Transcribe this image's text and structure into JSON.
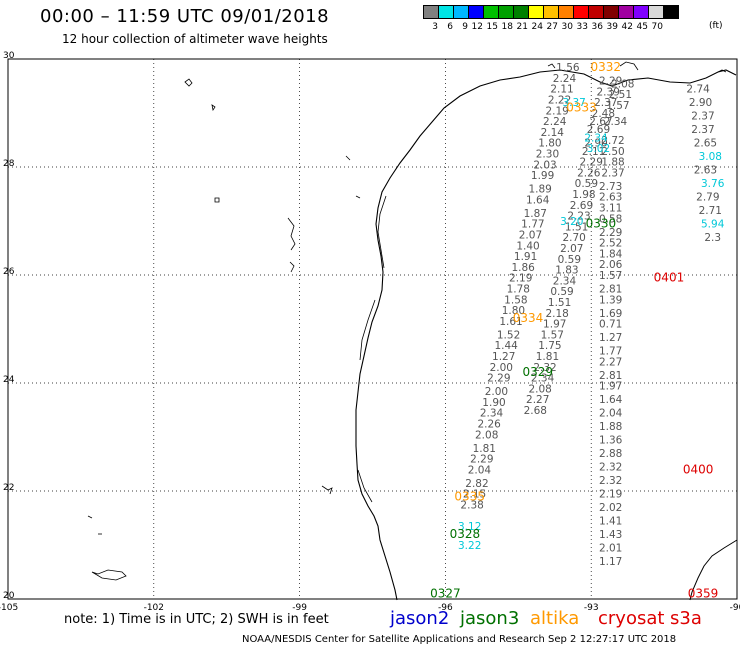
{
  "title": "00:00 – 11:59 UTC 09/01/2018",
  "subtitle": "12 hour collection of altimeter wave heights",
  "colorbar": {
    "colors": [
      "#808080",
      "#00e5e5",
      "#00b8ff",
      "#0000ff",
      "#00c000",
      "#00a000",
      "#008000",
      "#ffff00",
      "#ffc000",
      "#ff8000",
      "#ff0000",
      "#c00000",
      "#800000",
      "#a000a0",
      "#8000ff",
      "#d9d9d9",
      "#000000"
    ],
    "labels": [
      "3",
      "6",
      "9",
      "12",
      "15",
      "18",
      "21",
      "24",
      "27",
      "30",
      "33",
      "36",
      "39",
      "42",
      "45",
      "70"
    ],
    "unit": "(ft)"
  },
  "axes": {
    "lon_ticks": [
      "-105",
      "-102",
      "-99",
      "-96",
      "-93",
      "-90"
    ],
    "lat_ticks": [
      "30",
      "28",
      "26",
      "24",
      "22",
      "20"
    ]
  },
  "note": "note: 1) Time is in UTC; 2) SWH is in feet",
  "legend": [
    {
      "name": "jason2",
      "color": "#0000cc"
    },
    {
      "name": "jason3",
      "color": "#007000"
    },
    {
      "name": "altika",
      "color": "#ff9900"
    },
    {
      "name": "cryosat",
      "color": "#dd0000"
    },
    {
      "name": "s3a",
      "color": "#dd0000"
    }
  ],
  "footer": "NOAA/NESDIS Center for Satellite Applications and Research    Sep  2 12:27:17 UTC 2018",
  "times": [
    {
      "text": "0332",
      "color": "#ff9900",
      "lon": -92.7,
      "lat": 29.85
    },
    {
      "text": "0333",
      "color": "#ff9900",
      "lon": -93.2,
      "lat": 29.1
    },
    {
      "text": "0330",
      "color": "#007000",
      "lon": -92.8,
      "lat": 26.95
    },
    {
      "text": "0401",
      "color": "#dd0000",
      "lon": -91.4,
      "lat": 25.95
    },
    {
      "text": "0334",
      "color": "#ff9900",
      "lon": -94.3,
      "lat": 25.2
    },
    {
      "text": "0329",
      "color": "#007000",
      "lon": -94.1,
      "lat": 24.2
    },
    {
      "text": "0400",
      "color": "#dd0000",
      "lon": -90.8,
      "lat": 22.4
    },
    {
      "text": "0335",
      "color": "#ff9900",
      "lon": -95.5,
      "lat": 21.9
    },
    {
      "text": "0328",
      "color": "#007000",
      "lon": -95.6,
      "lat": 21.2
    },
    {
      "text": "0327",
      "color": "#007000",
      "lon": -96.0,
      "lat": 20.1
    },
    {
      "text": "0359",
      "color": "#dd0000",
      "lon": -90.7,
      "lat": 20.1
    }
  ],
  "tracks": [
    {
      "color": "#555555",
      "points": [
        [
          -93.48,
          29.85,
          "1.56"
        ],
        [
          -93.55,
          29.65,
          "2.24"
        ],
        [
          -93.6,
          29.45,
          "2.11"
        ],
        [
          -93.65,
          29.25,
          "2.22"
        ],
        [
          -93.7,
          29.05,
          "2.19"
        ],
        [
          -93.75,
          28.85,
          "2.24"
        ],
        [
          -93.8,
          28.65,
          "2.14"
        ],
        [
          -93.85,
          28.45,
          "1.80"
        ],
        [
          -93.9,
          28.25,
          "2.30"
        ],
        [
          -93.95,
          28.05,
          "2.03"
        ],
        [
          -94.0,
          27.85,
          "1.99"
        ],
        [
          -94.05,
          27.6,
          "1.89"
        ],
        [
          -94.1,
          27.4,
          "1.64"
        ],
        [
          -94.15,
          27.15,
          "1.87"
        ],
        [
          -94.2,
          26.95,
          "1.77"
        ],
        [
          -94.25,
          26.75,
          "2.07"
        ],
        [
          -94.3,
          26.55,
          "1.40"
        ],
        [
          -94.35,
          26.35,
          "1.91"
        ],
        [
          -94.4,
          26.15,
          "1.86"
        ],
        [
          -94.45,
          25.95,
          "2.19"
        ],
        [
          -94.5,
          25.75,
          "1.78"
        ],
        [
          -94.55,
          25.55,
          "1.58"
        ],
        [
          -94.6,
          25.35,
          "1.80"
        ],
        [
          -94.65,
          25.15,
          "1.61"
        ],
        [
          -94.7,
          24.9,
          "1.52"
        ],
        [
          -94.75,
          24.7,
          "1.44"
        ],
        [
          -94.8,
          24.5,
          "1.27"
        ],
        [
          -94.85,
          24.3,
          "2.00"
        ],
        [
          -94.9,
          24.1,
          "2.29"
        ],
        [
          -94.95,
          23.85,
          "2.00"
        ],
        [
          -95.0,
          23.65,
          "1.90"
        ],
        [
          -95.05,
          23.45,
          "2.34"
        ],
        [
          -95.1,
          23.25,
          "2.26"
        ],
        [
          -95.15,
          23.05,
          "2.08"
        ],
        [
          -95.2,
          22.8,
          "1.81"
        ],
        [
          -95.25,
          22.6,
          "2.29"
        ],
        [
          -95.3,
          22.4,
          "2.04"
        ],
        [
          -95.35,
          22.15,
          "2.82"
        ],
        [
          -95.4,
          21.95,
          "2.15"
        ],
        [
          -95.45,
          21.75,
          "2.38"
        ]
      ]
    },
    {
      "color": "#555555",
      "points": [
        [
          -92.6,
          29.6,
          "2.29"
        ],
        [
          -92.65,
          29.4,
          "2.39"
        ],
        [
          -92.7,
          29.2,
          "2.37"
        ],
        [
          -92.75,
          29.0,
          "2.48"
        ],
        [
          -92.8,
          28.85,
          "2.67"
        ],
        [
          -92.85,
          28.7,
          "2.69"
        ],
        [
          -92.9,
          28.45,
          "2.90"
        ],
        [
          -92.95,
          28.3,
          "2.11"
        ],
        [
          -93.0,
          28.1,
          "2.29"
        ],
        [
          -93.05,
          27.9,
          "2.26"
        ],
        [
          -93.1,
          27.7,
          "0.59"
        ],
        [
          -93.15,
          27.5,
          "1.98"
        ],
        [
          -93.2,
          27.3,
          "2.69"
        ],
        [
          -93.25,
          27.1,
          "2.23"
        ],
        [
          -93.3,
          26.9,
          "1.51"
        ],
        [
          -93.35,
          26.7,
          "2.70"
        ],
        [
          -93.4,
          26.5,
          "2.07"
        ],
        [
          -93.45,
          26.3,
          "0.59"
        ],
        [
          -93.5,
          26.1,
          "1.83"
        ],
        [
          -93.55,
          25.9,
          "2.34"
        ],
        [
          -93.6,
          25.7,
          "0.59"
        ],
        [
          -93.65,
          25.5,
          "1.51"
        ],
        [
          -93.7,
          25.3,
          "2.18"
        ],
        [
          -93.75,
          25.1,
          "1.97"
        ],
        [
          -93.8,
          24.9,
          "1.57"
        ],
        [
          -93.85,
          24.7,
          "1.75"
        ],
        [
          -93.9,
          24.5,
          "1.81"
        ],
        [
          -93.95,
          24.3,
          "2.32"
        ],
        [
          -94.0,
          24.1,
          "2.34"
        ],
        [
          -94.05,
          23.9,
          "2.08"
        ],
        [
          -94.1,
          23.7,
          "2.27"
        ],
        [
          -94.15,
          23.5,
          "2.68"
        ]
      ]
    },
    {
      "color": "#555555",
      "points": [
        [
          -92.35,
          29.55,
          "2.08"
        ],
        [
          -92.4,
          29.35,
          "2.51"
        ],
        [
          -92.45,
          29.15,
          "1.57"
        ],
        [
          -92.5,
          28.85,
          "2.34"
        ],
        [
          -92.55,
          28.5,
          "2.72"
        ],
        [
          -92.55,
          28.3,
          "2.50"
        ],
        [
          -92.55,
          28.1,
          "1.88"
        ],
        [
          -92.55,
          27.9,
          "2.37"
        ],
        [
          -92.6,
          27.65,
          "2.73"
        ],
        [
          -92.6,
          27.45,
          "2.63"
        ],
        [
          -92.6,
          27.25,
          "3.11"
        ],
        [
          -92.6,
          27.05,
          "0.58"
        ],
        [
          -92.6,
          26.8,
          "2.29"
        ],
        [
          -92.6,
          26.6,
          "2.52"
        ],
        [
          -92.6,
          26.4,
          "1.84"
        ],
        [
          -92.6,
          26.2,
          "2.06"
        ],
        [
          -92.6,
          26.0,
          "1.57"
        ],
        [
          -92.6,
          25.75,
          "2.81"
        ],
        [
          -92.6,
          25.55,
          "1.39"
        ],
        [
          -92.6,
          25.3,
          "1.69"
        ],
        [
          -92.6,
          25.1,
          "0.71"
        ],
        [
          -92.6,
          24.85,
          "1.27"
        ],
        [
          -92.6,
          24.6,
          "1.77"
        ],
        [
          -92.6,
          24.4,
          "2.27"
        ],
        [
          -92.6,
          24.15,
          "2.81"
        ],
        [
          -92.6,
          23.95,
          "1.97"
        ],
        [
          -92.6,
          23.7,
          "1.64"
        ],
        [
          -92.6,
          23.45,
          "2.04"
        ],
        [
          -92.6,
          23.2,
          "1.88"
        ],
        [
          -92.6,
          22.95,
          "1.36"
        ],
        [
          -92.6,
          22.7,
          "2.88"
        ],
        [
          -92.6,
          22.45,
          "2.32"
        ],
        [
          -92.6,
          22.2,
          "2.32"
        ],
        [
          -92.6,
          21.95,
          "2.19"
        ],
        [
          -92.6,
          21.7,
          "2.02"
        ],
        [
          -92.6,
          21.45,
          "1.41"
        ],
        [
          -92.6,
          21.2,
          "1.43"
        ],
        [
          -92.6,
          20.95,
          "2.01"
        ],
        [
          -92.6,
          20.7,
          "1.17"
        ]
      ]
    },
    {
      "color": "#555555",
      "points": [
        [
          -90.8,
          29.45,
          "2.74"
        ],
        [
          -90.75,
          29.2,
          "2.90"
        ],
        [
          -90.7,
          28.95,
          "2.37"
        ],
        [
          -90.7,
          28.7,
          "2.37"
        ],
        [
          -90.65,
          28.45,
          "2.65"
        ],
        [
          -90.65,
          27.95,
          "2.63"
        ],
        [
          -90.6,
          27.45,
          "2.79"
        ],
        [
          -90.55,
          27.2,
          "2.71"
        ],
        [
          -90.5,
          26.7,
          "2.3"
        ]
      ]
    },
    {
      "color": "#00c8d8",
      "points": [
        [
          -93.35,
          29.2,
          "3.37"
        ],
        [
          -92.9,
          28.55,
          "2.34"
        ],
        [
          -92.85,
          28.35,
          "3.02"
        ],
        [
          -93.4,
          27.0,
          "3.20"
        ],
        [
          -90.55,
          28.2,
          "3.08"
        ],
        [
          -90.5,
          27.7,
          "3.76"
        ],
        [
          -90.5,
          26.95,
          "5.94"
        ],
        [
          -95.5,
          21.35,
          "3.12"
        ],
        [
          -95.5,
          21.0,
          "3.22"
        ]
      ]
    }
  ]
}
